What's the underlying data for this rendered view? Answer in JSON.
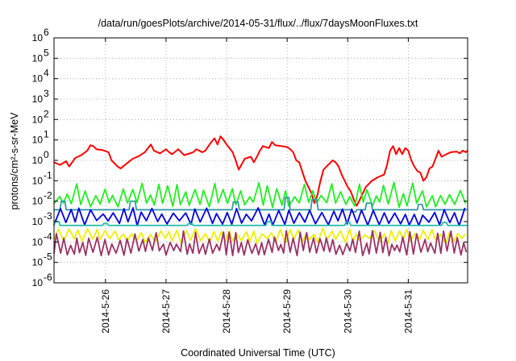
{
  "chart_data": {
    "type": "line",
    "title": "/data/run/goesPlots/archive/2014-05-31/flux/../flux/7daysMoonFluxes.txt",
    "xlabel": "Coordinated Universal Time (UTC)",
    "ylabel": "protons/cm²-s-sr-MeV",
    "y_scale": "log",
    "ylim": [
      1e-06,
      1000000.0
    ],
    "xlim_days": [
      25.15,
      31.98
    ],
    "grid": true,
    "yticks": [
      {
        "base": "10",
        "exp": "-6"
      },
      {
        "base": "10",
        "exp": "-5"
      },
      {
        "base": "10",
        "exp": "-4"
      },
      {
        "base": "10",
        "exp": "-3"
      },
      {
        "base": "10",
        "exp": "-2"
      },
      {
        "base": "10",
        "exp": "-1"
      },
      {
        "base": "10",
        "exp": "0"
      },
      {
        "base": "10",
        "exp": "1"
      },
      {
        "base": "10",
        "exp": "2"
      },
      {
        "base": "10",
        "exp": "3"
      },
      {
        "base": "10",
        "exp": "4"
      },
      {
        "base": "10",
        "exp": "5"
      },
      {
        "base": "10",
        "exp": "6"
      }
    ],
    "xticks": [
      {
        "label": "2014-5-26",
        "day": 26
      },
      {
        "label": "2014-5-27",
        "day": 27
      },
      {
        "label": "2014-5-28",
        "day": 28
      },
      {
        "label": "2014-5-29",
        "day": 29
      },
      {
        "label": "2014-5-30",
        "day": 30
      },
      {
        "label": "2014-5-31",
        "day": 31
      }
    ],
    "series": [
      {
        "color": "#ff0000",
        "kind": "smooth",
        "points": [
          [
            25.15,
            0.8
          ],
          [
            25.25,
            0.6
          ],
          [
            25.35,
            0.9
          ],
          [
            25.4,
            0.5
          ],
          [
            25.5,
            1.3
          ],
          [
            25.6,
            1.8
          ],
          [
            25.7,
            3.0
          ],
          [
            25.75,
            5.5
          ],
          [
            25.8,
            5.0
          ],
          [
            25.85,
            3.5
          ],
          [
            25.95,
            3.2
          ],
          [
            26.05,
            2.5
          ],
          [
            26.1,
            1.0
          ],
          [
            26.2,
            0.5
          ],
          [
            26.25,
            0.4
          ],
          [
            26.35,
            0.7
          ],
          [
            26.45,
            1.2
          ],
          [
            26.55,
            1.6
          ],
          [
            26.65,
            2.5
          ],
          [
            26.75,
            6.0
          ],
          [
            26.8,
            3.0
          ],
          [
            26.9,
            2.2
          ],
          [
            27.0,
            3.5
          ],
          [
            27.05,
            2.5
          ],
          [
            27.1,
            2.0
          ],
          [
            27.2,
            3.5
          ],
          [
            27.3,
            1.8
          ],
          [
            27.35,
            2.0
          ],
          [
            27.45,
            2.5
          ],
          [
            27.5,
            3.5
          ],
          [
            27.6,
            2.5
          ],
          [
            27.65,
            3.0
          ],
          [
            27.7,
            5.0
          ],
          [
            27.75,
            8.0
          ],
          [
            27.8,
            12.0
          ],
          [
            27.85,
            6.0
          ],
          [
            27.9,
            15.0
          ],
          [
            27.95,
            10.0
          ],
          [
            28.0,
            6.0
          ],
          [
            28.1,
            2.5
          ],
          [
            28.15,
            1.0
          ],
          [
            28.2,
            0.35
          ],
          [
            28.3,
            1.2
          ],
          [
            28.4,
            1.5
          ],
          [
            28.45,
            0.8
          ],
          [
            28.5,
            1.5
          ],
          [
            28.55,
            3.0
          ],
          [
            28.6,
            5.0
          ],
          [
            28.7,
            4.0
          ],
          [
            28.75,
            8.0
          ],
          [
            28.8,
            5.5
          ],
          [
            28.9,
            5.0
          ],
          [
            29.0,
            4.5
          ],
          [
            29.05,
            3.5
          ],
          [
            29.1,
            2.5
          ],
          [
            29.15,
            1.0
          ],
          [
            29.2,
            0.8
          ],
          [
            29.3,
            0.1
          ],
          [
            29.35,
            0.05
          ],
          [
            29.4,
            0.025
          ],
          [
            29.45,
            0.008
          ],
          [
            29.5,
            0.02
          ],
          [
            29.55,
            0.1
          ],
          [
            29.6,
            0.35
          ],
          [
            29.65,
            0.5
          ],
          [
            29.7,
            0.7
          ],
          [
            29.75,
            1.0
          ],
          [
            29.8,
            0.8
          ],
          [
            29.85,
            0.5
          ],
          [
            29.9,
            0.2
          ],
          [
            30.0,
            0.05
          ],
          [
            30.05,
            0.03
          ],
          [
            30.1,
            0.012
          ],
          [
            30.15,
            0.006
          ],
          [
            30.2,
            0.012
          ],
          [
            30.3,
            0.05
          ],
          [
            30.4,
            0.1
          ],
          [
            30.5,
            0.15
          ],
          [
            30.6,
            0.2
          ],
          [
            30.65,
            0.6
          ],
          [
            30.7,
            3.0
          ],
          [
            30.75,
            5.0
          ],
          [
            30.8,
            2.0
          ],
          [
            30.85,
            4.0
          ],
          [
            30.9,
            2.0
          ],
          [
            30.95,
            4.0
          ],
          [
            31.0,
            3.0
          ],
          [
            31.05,
            1.0
          ],
          [
            31.1,
            0.5
          ],
          [
            31.15,
            0.3
          ],
          [
            31.2,
            0.25
          ],
          [
            31.25,
            0.1
          ],
          [
            31.3,
            0.15
          ],
          [
            31.35,
            0.4
          ],
          [
            31.4,
            0.5
          ],
          [
            31.45,
            1.2
          ],
          [
            31.5,
            3.0
          ],
          [
            31.55,
            1.5
          ],
          [
            31.6,
            1.8
          ],
          [
            31.7,
            2.5
          ],
          [
            31.8,
            2.7
          ],
          [
            31.85,
            2.2
          ],
          [
            31.9,
            3.0
          ],
          [
            31.95,
            2.5
          ],
          [
            31.98,
            3.0
          ]
        ]
      },
      {
        "color": "#22ee22",
        "kind": "jagged",
        "base": 0.007,
        "highs": [
          0.02,
          0.035,
          0.07
        ],
        "spacing": 0.075,
        "phase": 0.03,
        "seed": 11
      },
      {
        "color": "#3399aa",
        "kind": "flat",
        "level": 0.0038,
        "spikes": [
          [
            25.3,
            0.01
          ],
          [
            26.45,
            0.01
          ],
          [
            28.15,
            0.009
          ],
          [
            29.0,
            0.015
          ],
          [
            29.45,
            0.012
          ],
          [
            30.1,
            0.003
          ],
          [
            30.35,
            0.008
          ],
          [
            31.2,
            0.007
          ]
        ]
      },
      {
        "color": "#0000dd",
        "kind": "jagged",
        "base": 0.0009,
        "highs": [
          0.0025,
          0.004
        ],
        "spacing": 0.085,
        "phase": 0.01,
        "seed": 23
      },
      {
        "color": "#22bbaa",
        "kind": "flat",
        "level": 0.00065,
        "spikes": [
          [
            25.2,
            0.001
          ],
          [
            26.0,
            0.0008
          ],
          [
            27.4,
            0.0008
          ],
          [
            28.7,
            0.001
          ],
          [
            30.0,
            0.0009
          ],
          [
            31.6,
            0.0009
          ]
        ]
      },
      {
        "color": "#eeee00",
        "kind": "jagged",
        "base": 0.00012,
        "highs": [
          0.00025,
          0.0004
        ],
        "spacing": 0.07,
        "phase": 0.02,
        "seed": 37
      },
      {
        "color": "#993366",
        "kind": "jagged",
        "base": 3e-05,
        "highs": [
          8e-05,
          0.00015,
          0.0003
        ],
        "spacing": 0.055,
        "phase": 0.0,
        "seed": 53
      }
    ]
  }
}
